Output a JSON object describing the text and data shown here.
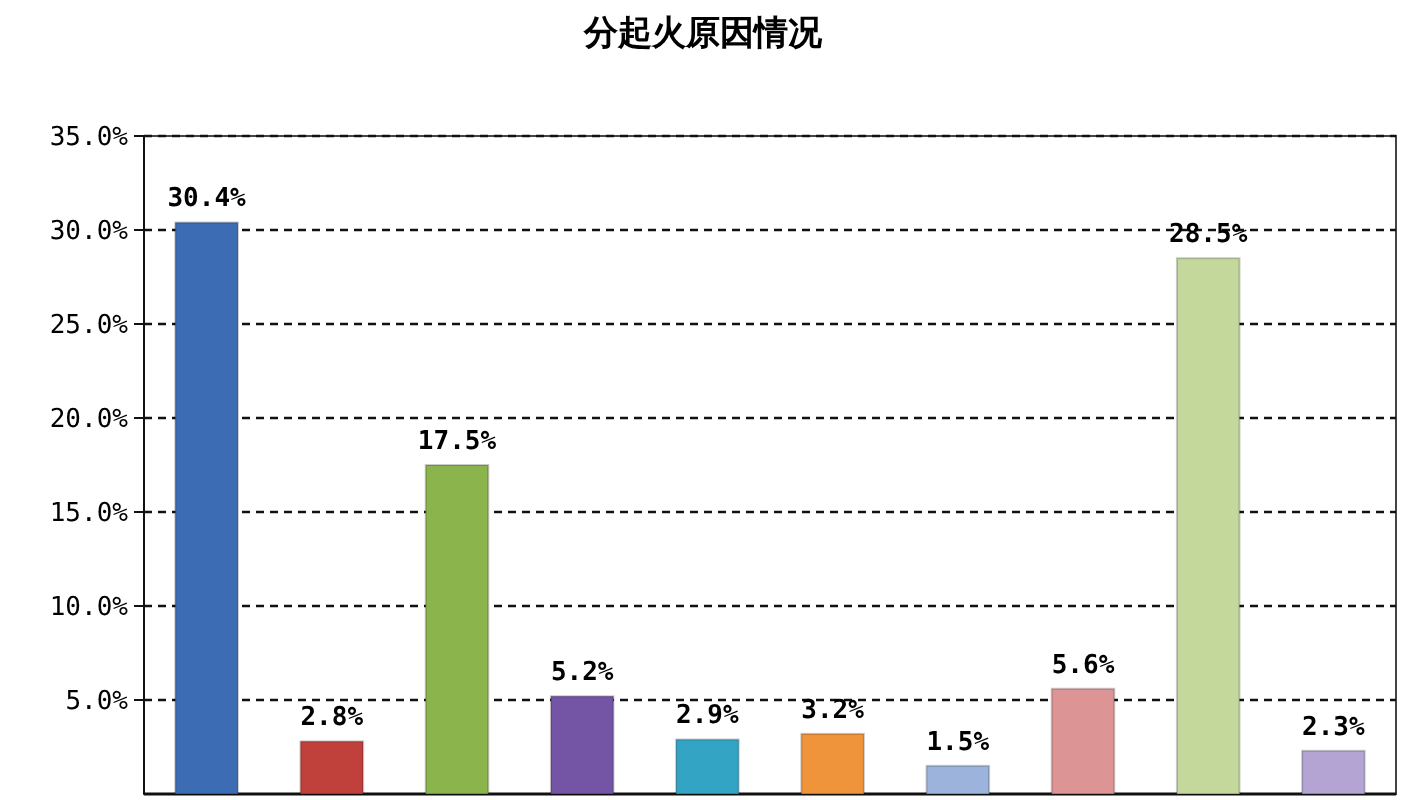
{
  "chart_data": {
    "type": "bar",
    "title": "分起火原因情况",
    "categories": [
      null,
      null,
      null,
      null,
      null,
      null,
      null,
      null,
      null,
      null
    ],
    "values": [
      30.4,
      2.8,
      17.5,
      5.2,
      2.9,
      3.2,
      1.5,
      5.6,
      28.5,
      2.3
    ],
    "value_labels": [
      "30.4%",
      "2.8%",
      "17.5%",
      "5.2%",
      "2.9%",
      "3.2%",
      "1.5%",
      "5.6%",
      "28.5%",
      "2.3%"
    ],
    "colors": [
      "#3c6cb4",
      "#c0403c",
      "#8cb44c",
      "#7454a4",
      "#34a4c4",
      "#f0943c",
      "#9cb4dc",
      "#dc9494",
      "#c4d89c",
      "#b4a4d4"
    ],
    "ylim": [
      0,
      35
    ],
    "yticks": [
      {
        "value": 5,
        "label": "5.0%"
      },
      {
        "value": 10,
        "label": "10.0%"
      },
      {
        "value": 15,
        "label": "15.0%"
      },
      {
        "value": 20,
        "label": "20.0%"
      },
      {
        "value": 25,
        "label": "25.0%"
      },
      {
        "value": 30,
        "label": "30.0%"
      },
      {
        "value": 35,
        "label": "35.0%"
      }
    ],
    "grid": "y"
  }
}
